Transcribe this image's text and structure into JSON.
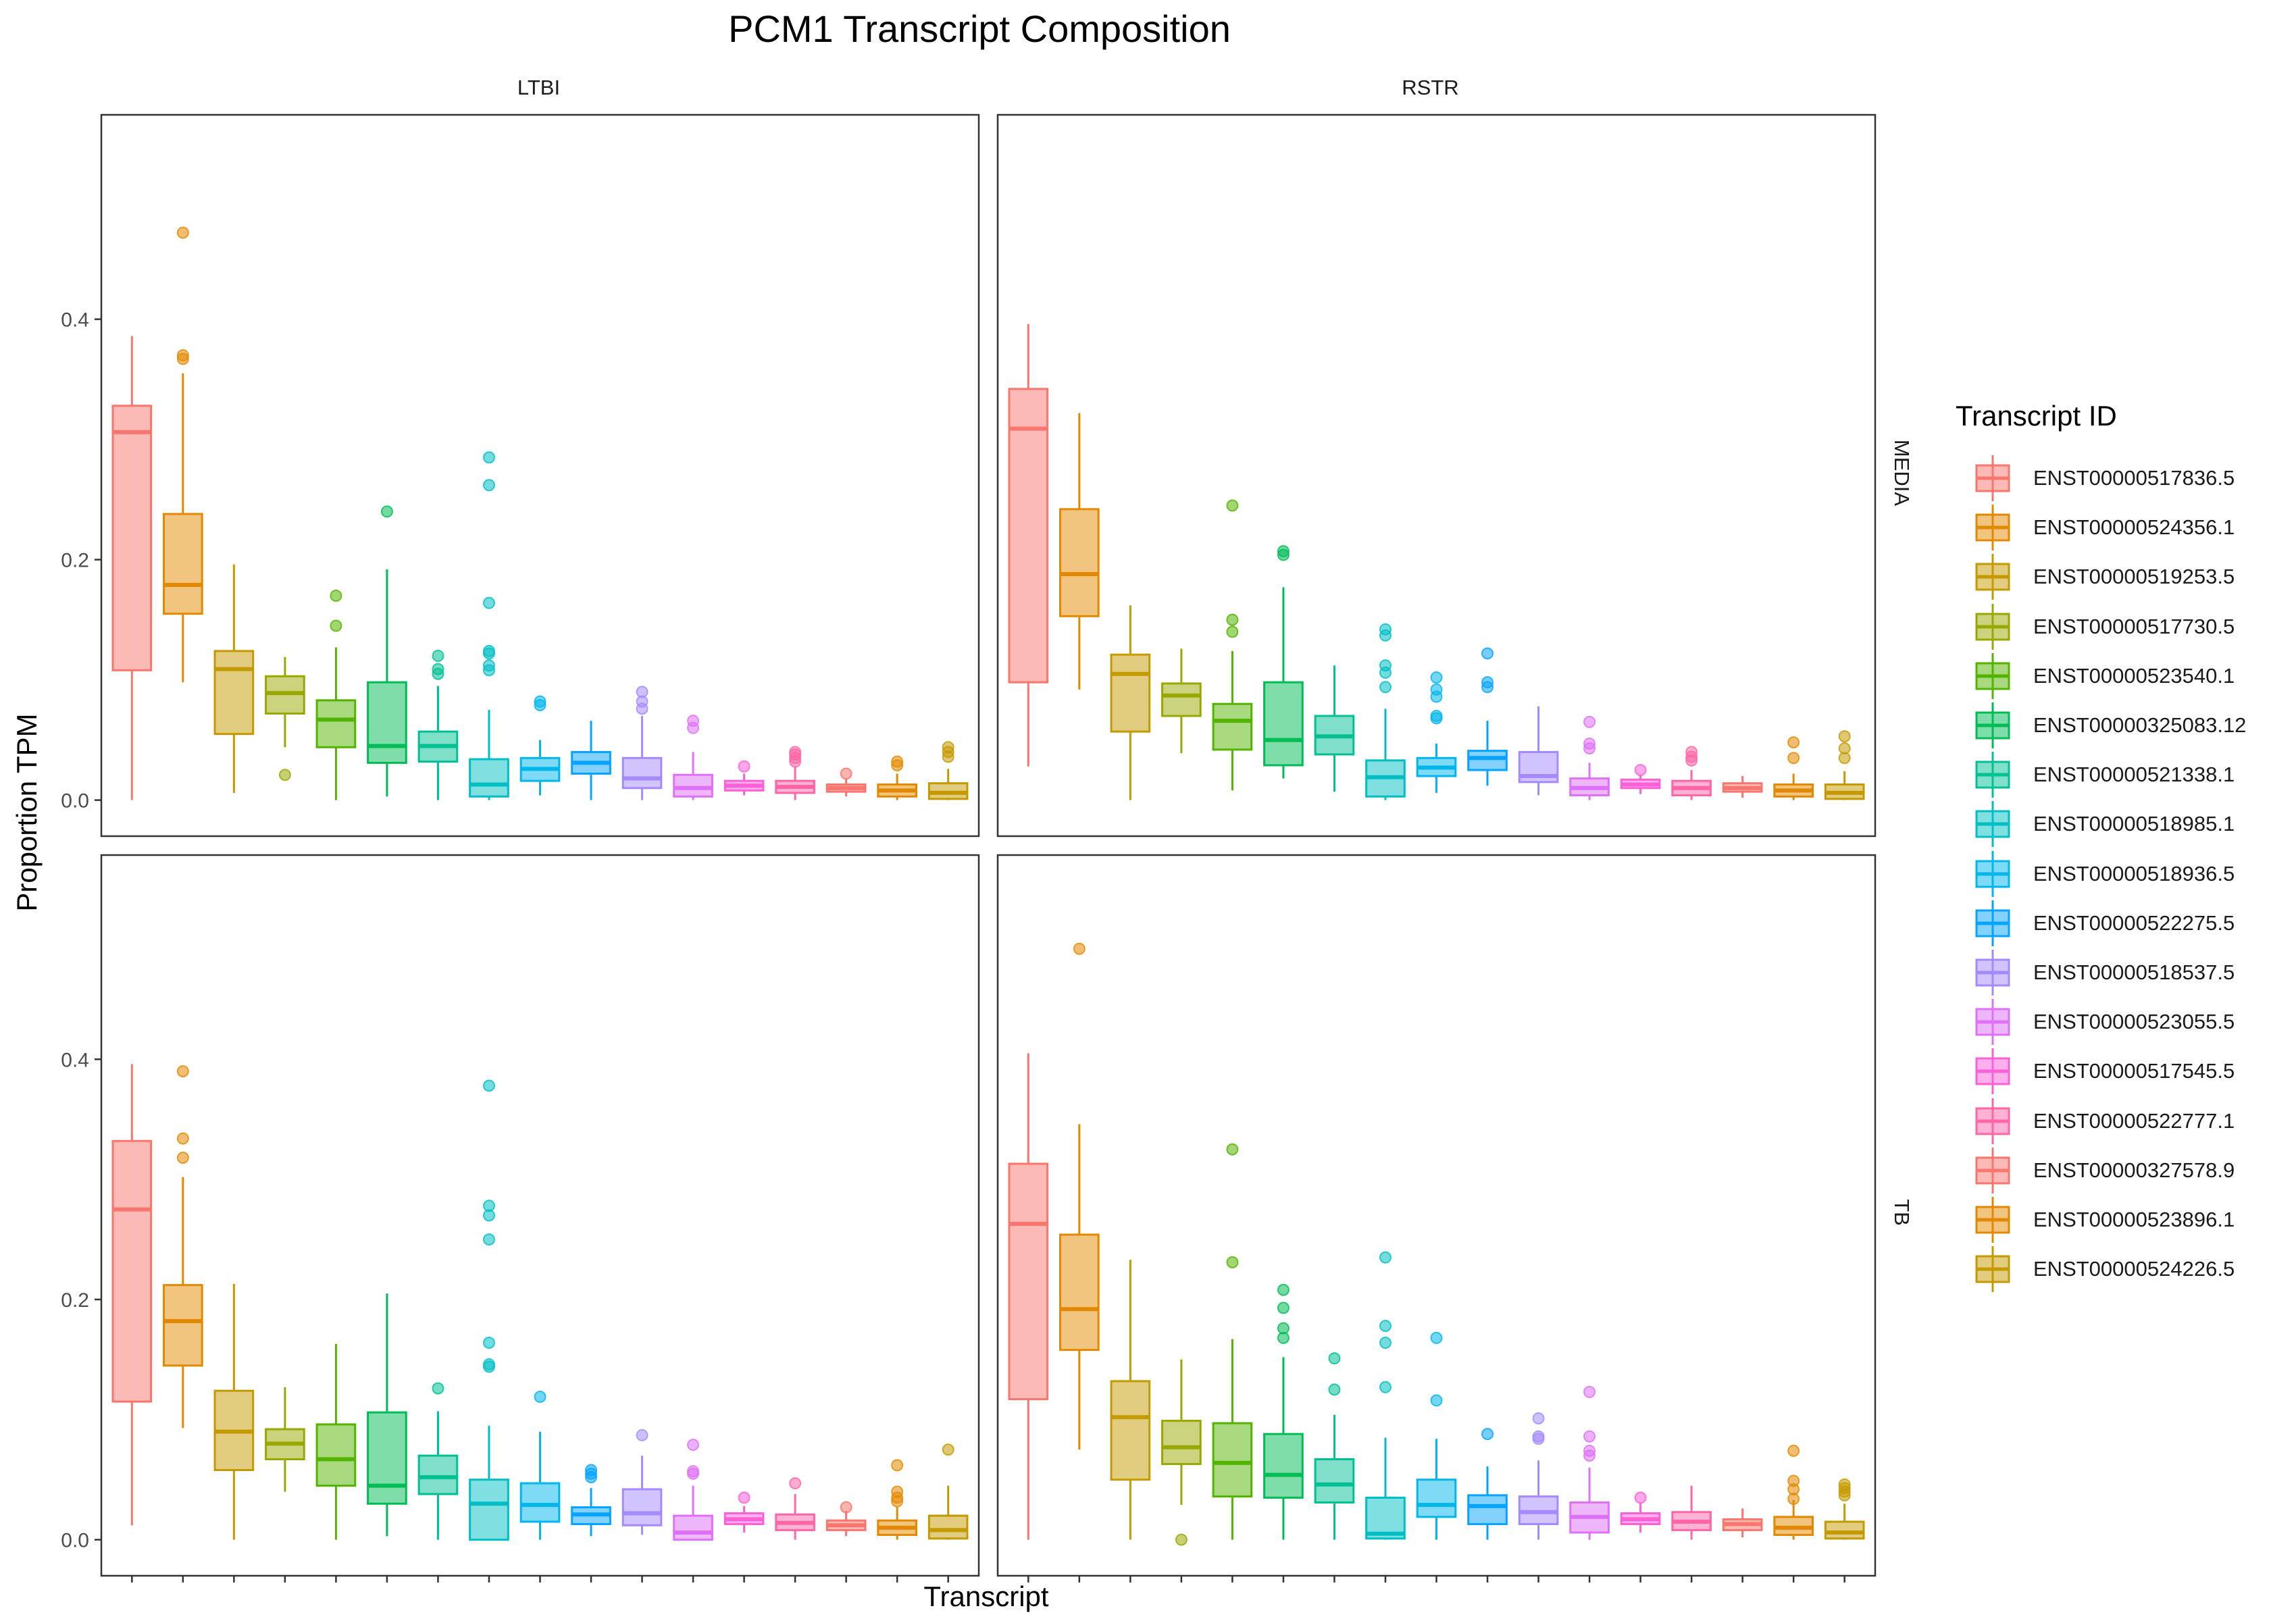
{
  "chart_data": {
    "type": "box",
    "title": "PCM1 Transcript Composition",
    "xlabel": "Transcript",
    "ylabel": "Proportion TPM",
    "ylim": [
      -0.03,
      0.57
    ],
    "yticks": [
      "0.0",
      "0.2",
      "0.4"
    ],
    "yticks_values": [
      0.0,
      0.2,
      0.4
    ],
    "facet_columns": [
      "LTBI",
      "RSTR"
    ],
    "facet_rows": [
      "MEDIA",
      "TB"
    ],
    "legend_title": "Transcript ID",
    "legend_position": "right",
    "grid": false,
    "series": [
      {
        "name": "ENST00000517836.5",
        "color": "#F8766D"
      },
      {
        "name": "ENST00000524356.1",
        "color": "#E38900"
      },
      {
        "name": "ENST00000519253.5",
        "color": "#C49A00"
      },
      {
        "name": "ENST00000517730.5",
        "color": "#99A800"
      },
      {
        "name": "ENST00000523540.1",
        "color": "#53B400"
      },
      {
        "name": "ENST00000325083.12",
        "color": "#00BC56"
      },
      {
        "name": "ENST00000521338.1",
        "color": "#00C094"
      },
      {
        "name": "ENST00000518985.1",
        "color": "#00BFC4"
      },
      {
        "name": "ENST00000518936.5",
        "color": "#00B6EB"
      },
      {
        "name": "ENST00000522275.5",
        "color": "#06A4FF"
      },
      {
        "name": "ENST00000518537.5",
        "color": "#A58AFF"
      },
      {
        "name": "ENST00000523055.5",
        "color": "#DF70F8"
      },
      {
        "name": "ENST00000517545.5",
        "color": "#FB61D7"
      },
      {
        "name": "ENST00000522777.1",
        "color": "#FF66A8"
      },
      {
        "name": "ENST00000327578.9",
        "color": "#F8766D"
      },
      {
        "name": "ENST00000523896.1",
        "color": "#E38900"
      },
      {
        "name": "ENST00000524226.5",
        "color": "#C49A00"
      }
    ],
    "panels": [
      {
        "col": "LTBI",
        "row": "MEDIA",
        "boxes": [
          {
            "q1": 0.108,
            "med": 0.306,
            "q3": 0.328,
            "lo": 0.0,
            "hi": 0.386,
            "out": []
          },
          {
            "q1": 0.155,
            "med": 0.179,
            "q3": 0.238,
            "lo": 0.098,
            "hi": 0.355,
            "out": [
              0.472,
              0.37,
              0.367
            ]
          },
          {
            "q1": 0.055,
            "med": 0.109,
            "q3": 0.124,
            "lo": 0.006,
            "hi": 0.196,
            "out": []
          },
          {
            "q1": 0.072,
            "med": 0.089,
            "q3": 0.103,
            "lo": 0.044,
            "hi": 0.119,
            "out": [
              0.021
            ]
          },
          {
            "q1": 0.044,
            "med": 0.067,
            "q3": 0.083,
            "lo": 0.0,
            "hi": 0.127,
            "out": [
              0.17,
              0.145
            ]
          },
          {
            "q1": 0.031,
            "med": 0.045,
            "q3": 0.098,
            "lo": 0.003,
            "hi": 0.192,
            "out": [
              0.24
            ]
          },
          {
            "q1": 0.032,
            "med": 0.045,
            "q3": 0.057,
            "lo": 0.0,
            "hi": 0.095,
            "out": [
              0.12,
              0.109,
              0.105
            ]
          },
          {
            "q1": 0.003,
            "med": 0.013,
            "q3": 0.034,
            "lo": 0.0,
            "hi": 0.075,
            "out": [
              0.285,
              0.262,
              0.164,
              0.124,
              0.122,
              0.112,
              0.108
            ]
          },
          {
            "q1": 0.016,
            "med": 0.026,
            "q3": 0.035,
            "lo": 0.004,
            "hi": 0.05,
            "out": [
              0.082,
              0.079
            ]
          },
          {
            "q1": 0.022,
            "med": 0.031,
            "q3": 0.04,
            "lo": 0.0,
            "hi": 0.066,
            "out": []
          },
          {
            "q1": 0.01,
            "med": 0.018,
            "q3": 0.035,
            "lo": 0.0,
            "hi": 0.07,
            "out": [
              0.09,
              0.082,
              0.076
            ]
          },
          {
            "q1": 0.003,
            "med": 0.01,
            "q3": 0.021,
            "lo": 0.0,
            "hi": 0.04,
            "out": [
              0.066,
              0.06
            ]
          },
          {
            "q1": 0.008,
            "med": 0.012,
            "q3": 0.016,
            "lo": 0.004,
            "hi": 0.022,
            "out": [
              0.028
            ]
          },
          {
            "q1": 0.006,
            "med": 0.011,
            "q3": 0.016,
            "lo": 0.0,
            "hi": 0.028,
            "out": [
              0.04,
              0.038,
              0.035,
              0.032
            ]
          },
          {
            "q1": 0.007,
            "med": 0.01,
            "q3": 0.013,
            "lo": 0.003,
            "hi": 0.018,
            "out": [
              0.022
            ]
          },
          {
            "q1": 0.003,
            "med": 0.008,
            "q3": 0.013,
            "lo": 0.0,
            "hi": 0.022,
            "out": [
              0.032,
              0.029
            ]
          },
          {
            "q1": 0.001,
            "med": 0.006,
            "q3": 0.014,
            "lo": 0.0,
            "hi": 0.026,
            "out": [
              0.044,
              0.04,
              0.036
            ]
          }
        ]
      },
      {
        "col": "RSTR",
        "row": "MEDIA",
        "boxes": [
          {
            "q1": 0.098,
            "med": 0.309,
            "q3": 0.342,
            "lo": 0.028,
            "hi": 0.396,
            "out": []
          },
          {
            "q1": 0.153,
            "med": 0.188,
            "q3": 0.242,
            "lo": 0.092,
            "hi": 0.322,
            "out": []
          },
          {
            "q1": 0.057,
            "med": 0.105,
            "q3": 0.121,
            "lo": 0.0,
            "hi": 0.162,
            "out": []
          },
          {
            "q1": 0.07,
            "med": 0.087,
            "q3": 0.097,
            "lo": 0.039,
            "hi": 0.126,
            "out": []
          },
          {
            "q1": 0.042,
            "med": 0.066,
            "q3": 0.08,
            "lo": 0.008,
            "hi": 0.124,
            "out": [
              0.245,
              0.15,
              0.14
            ]
          },
          {
            "q1": 0.029,
            "med": 0.05,
            "q3": 0.098,
            "lo": 0.018,
            "hi": 0.177,
            "out": [
              0.207,
              0.204
            ]
          },
          {
            "q1": 0.038,
            "med": 0.053,
            "q3": 0.07,
            "lo": 0.007,
            "hi": 0.112,
            "out": []
          },
          {
            "q1": 0.003,
            "med": 0.019,
            "q3": 0.033,
            "lo": 0.0,
            "hi": 0.076,
            "out": [
              0.142,
              0.137,
              0.112,
              0.106,
              0.094
            ]
          },
          {
            "q1": 0.02,
            "med": 0.027,
            "q3": 0.035,
            "lo": 0.006,
            "hi": 0.047,
            "out": [
              0.102,
              0.092,
              0.086,
              0.07,
              0.068
            ]
          },
          {
            "q1": 0.025,
            "med": 0.035,
            "q3": 0.041,
            "lo": 0.012,
            "hi": 0.066,
            "out": [
              0.122,
              0.098,
              0.094
            ]
          },
          {
            "q1": 0.015,
            "med": 0.02,
            "q3": 0.04,
            "lo": 0.004,
            "hi": 0.078,
            "out": []
          },
          {
            "q1": 0.004,
            "med": 0.01,
            "q3": 0.018,
            "lo": 0.0,
            "hi": 0.031,
            "out": [
              0.065,
              0.047,
              0.043
            ]
          },
          {
            "q1": 0.01,
            "med": 0.013,
            "q3": 0.017,
            "lo": 0.005,
            "hi": 0.021,
            "out": [
              0.025
            ]
          },
          {
            "q1": 0.004,
            "med": 0.01,
            "q3": 0.016,
            "lo": 0.0,
            "hi": 0.025,
            "out": [
              0.04,
              0.036,
              0.033
            ]
          },
          {
            "q1": 0.007,
            "med": 0.01,
            "q3": 0.014,
            "lo": 0.002,
            "hi": 0.02,
            "out": []
          },
          {
            "q1": 0.003,
            "med": 0.008,
            "q3": 0.013,
            "lo": 0.0,
            "hi": 0.022,
            "out": [
              0.048,
              0.035
            ]
          },
          {
            "q1": 0.001,
            "med": 0.006,
            "q3": 0.013,
            "lo": 0.0,
            "hi": 0.024,
            "out": [
              0.053,
              0.043,
              0.035
            ]
          }
        ]
      },
      {
        "col": "LTBI",
        "row": "TB",
        "boxes": [
          {
            "q1": 0.115,
            "med": 0.275,
            "q3": 0.332,
            "lo": 0.012,
            "hi": 0.396,
            "out": []
          },
          {
            "q1": 0.145,
            "med": 0.182,
            "q3": 0.212,
            "lo": 0.093,
            "hi": 0.302,
            "out": [
              0.39,
              0.334,
              0.318
            ]
          },
          {
            "q1": 0.058,
            "med": 0.09,
            "q3": 0.124,
            "lo": 0.0,
            "hi": 0.213,
            "out": []
          },
          {
            "q1": 0.067,
            "med": 0.08,
            "q3": 0.092,
            "lo": 0.04,
            "hi": 0.127,
            "out": []
          },
          {
            "q1": 0.045,
            "med": 0.067,
            "q3": 0.096,
            "lo": 0.0,
            "hi": 0.163,
            "out": []
          },
          {
            "q1": 0.03,
            "med": 0.045,
            "q3": 0.106,
            "lo": 0.003,
            "hi": 0.205,
            "out": []
          },
          {
            "q1": 0.038,
            "med": 0.052,
            "q3": 0.07,
            "lo": 0.0,
            "hi": 0.107,
            "out": [
              0.126
            ]
          },
          {
            "q1": 0.0,
            "med": 0.03,
            "q3": 0.05,
            "lo": 0.0,
            "hi": 0.095,
            "out": [
              0.378,
              0.278,
              0.27,
              0.25,
              0.164,
              0.146,
              0.144
            ]
          },
          {
            "q1": 0.015,
            "med": 0.029,
            "q3": 0.047,
            "lo": 0.0,
            "hi": 0.09,
            "out": [
              0.119
            ]
          },
          {
            "q1": 0.013,
            "med": 0.021,
            "q3": 0.027,
            "lo": 0.003,
            "hi": 0.043,
            "out": [
              0.058,
              0.055,
              0.052
            ]
          },
          {
            "q1": 0.012,
            "med": 0.022,
            "q3": 0.042,
            "lo": 0.004,
            "hi": 0.07,
            "out": [
              0.087
            ]
          },
          {
            "q1": 0.0,
            "med": 0.006,
            "q3": 0.02,
            "lo": 0.0,
            "hi": 0.045,
            "out": [
              0.079,
              0.057,
              0.055
            ]
          },
          {
            "q1": 0.013,
            "med": 0.017,
            "q3": 0.022,
            "lo": 0.006,
            "hi": 0.028,
            "out": [
              0.035
            ]
          },
          {
            "q1": 0.008,
            "med": 0.014,
            "q3": 0.021,
            "lo": 0.0,
            "hi": 0.038,
            "out": [
              0.047
            ]
          },
          {
            "q1": 0.008,
            "med": 0.012,
            "q3": 0.016,
            "lo": 0.003,
            "hi": 0.024,
            "out": [
              0.027
            ]
          },
          {
            "q1": 0.004,
            "med": 0.01,
            "q3": 0.016,
            "lo": 0.0,
            "hi": 0.027,
            "out": [
              0.062,
              0.04,
              0.035,
              0.032
            ]
          },
          {
            "q1": 0.001,
            "med": 0.008,
            "q3": 0.02,
            "lo": 0.0,
            "hi": 0.045,
            "out": [
              0.075
            ]
          }
        ]
      },
      {
        "col": "RSTR",
        "row": "TB",
        "boxes": [
          {
            "q1": 0.117,
            "med": 0.263,
            "q3": 0.313,
            "lo": 0.0,
            "hi": 0.405,
            "out": []
          },
          {
            "q1": 0.158,
            "med": 0.192,
            "q3": 0.254,
            "lo": 0.075,
            "hi": 0.346,
            "out": [
              0.492
            ]
          },
          {
            "q1": 0.05,
            "med": 0.102,
            "q3": 0.132,
            "lo": 0.0,
            "hi": 0.233,
            "out": []
          },
          {
            "q1": 0.063,
            "med": 0.077,
            "q3": 0.099,
            "lo": 0.029,
            "hi": 0.15,
            "out": [
              0.0
            ]
          },
          {
            "q1": 0.036,
            "med": 0.064,
            "q3": 0.097,
            "lo": 0.0,
            "hi": 0.167,
            "out": [
              0.325,
              0.231
            ]
          },
          {
            "q1": 0.035,
            "med": 0.054,
            "q3": 0.088,
            "lo": 0.0,
            "hi": 0.152,
            "out": [
              0.208,
              0.193,
              0.176,
              0.168
            ]
          },
          {
            "q1": 0.031,
            "med": 0.046,
            "q3": 0.067,
            "lo": 0.0,
            "hi": 0.104,
            "out": [
              0.151,
              0.125
            ]
          },
          {
            "q1": 0.001,
            "med": 0.005,
            "q3": 0.035,
            "lo": 0.0,
            "hi": 0.085,
            "out": [
              0.235,
              0.178,
              0.164,
              0.127
            ]
          },
          {
            "q1": 0.019,
            "med": 0.029,
            "q3": 0.05,
            "lo": 0.0,
            "hi": 0.084,
            "out": [
              0.168,
              0.116
            ]
          },
          {
            "q1": 0.013,
            "med": 0.028,
            "q3": 0.037,
            "lo": 0.0,
            "hi": 0.061,
            "out": [
              0.088
            ]
          },
          {
            "q1": 0.013,
            "med": 0.023,
            "q3": 0.036,
            "lo": 0.0,
            "hi": 0.066,
            "out": [
              0.101,
              0.086,
              0.084
            ]
          },
          {
            "q1": 0.006,
            "med": 0.019,
            "q3": 0.031,
            "lo": 0.0,
            "hi": 0.06,
            "out": [
              0.123,
              0.086,
              0.074,
              0.07
            ]
          },
          {
            "q1": 0.013,
            "med": 0.017,
            "q3": 0.022,
            "lo": 0.006,
            "hi": 0.031,
            "out": [
              0.035
            ]
          },
          {
            "q1": 0.008,
            "med": 0.015,
            "q3": 0.023,
            "lo": 0.0,
            "hi": 0.045,
            "out": []
          },
          {
            "q1": 0.008,
            "med": 0.013,
            "q3": 0.017,
            "lo": 0.002,
            "hi": 0.026,
            "out": []
          },
          {
            "q1": 0.004,
            "med": 0.01,
            "q3": 0.019,
            "lo": 0.0,
            "hi": 0.033,
            "out": [
              0.074,
              0.049,
              0.042,
              0.034
            ]
          },
          {
            "q1": 0.001,
            "med": 0.006,
            "q3": 0.015,
            "lo": 0.0,
            "hi": 0.03,
            "out": [
              0.046,
              0.043,
              0.04,
              0.037
            ]
          }
        ]
      }
    ]
  }
}
